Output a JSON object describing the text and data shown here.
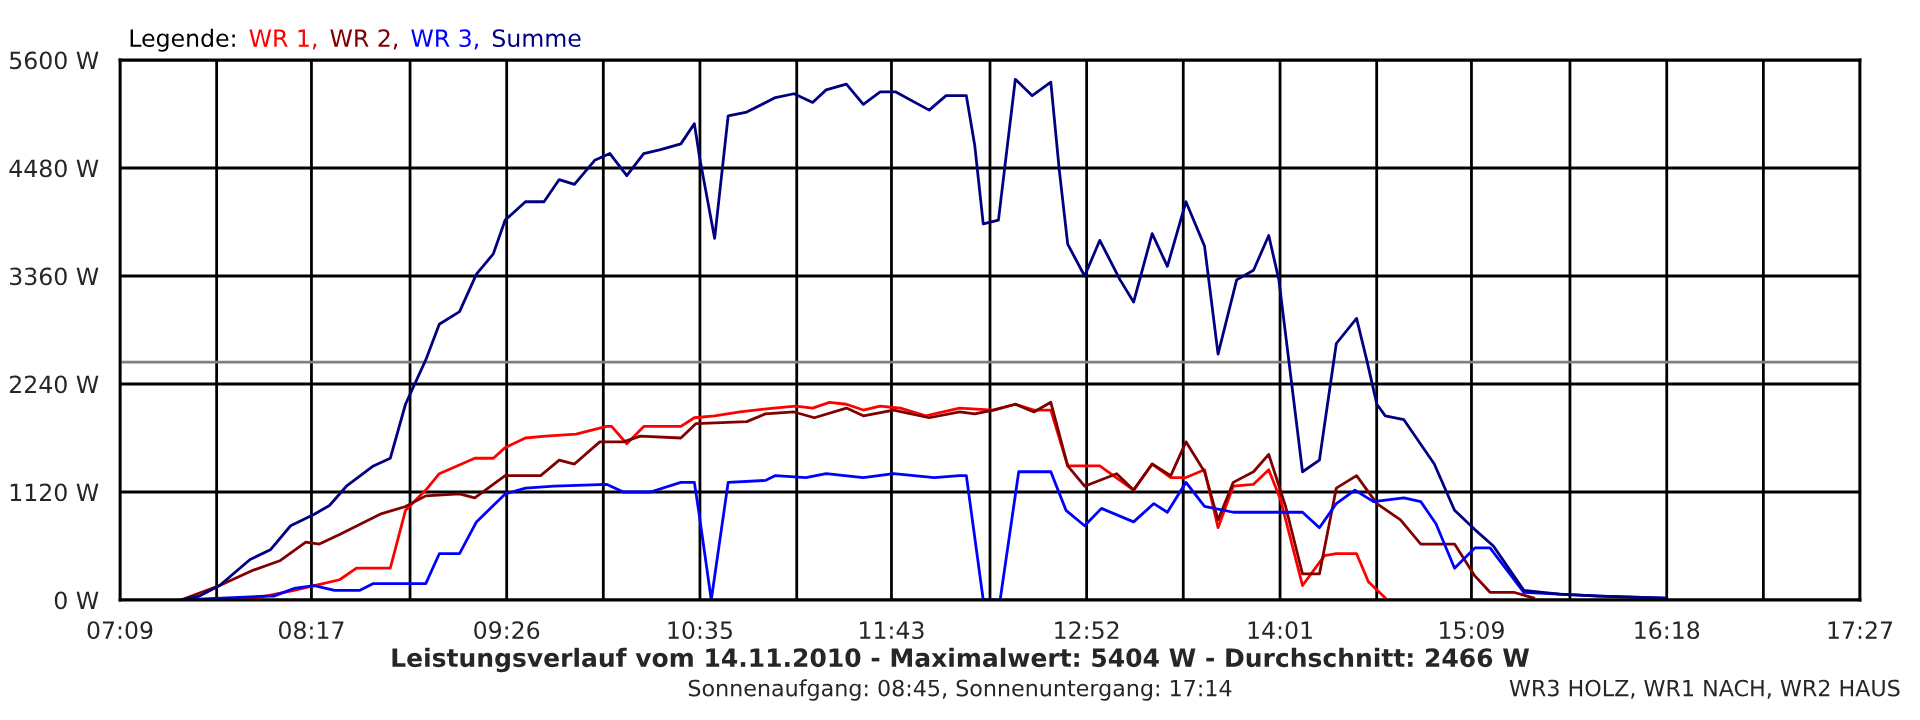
{
  "chart_data": {
    "type": "line",
    "title": "Leistungsverlauf vom 14.11.2010 - Maximalwert: 5404 W - Durchschnitt: 2466 W",
    "annotations": [
      "Sonnenaufgang: 08:45, Sonnenuntergang: 17:14",
      "WR3 HOLZ, WR1 NACH, WR2 HAUS"
    ],
    "legend_title": "Legende:",
    "legend": "top left",
    "grid": true,
    "line_style": "solid",
    "marker": "none",
    "xlim": [
      7.15,
      17.45
    ],
    "xticks": [
      {
        "value": 7.15,
        "label": "07:09"
      },
      {
        "value": 7.722,
        "label": null
      },
      {
        "value": 8.2833,
        "label": "08:17"
      },
      {
        "value": 8.867,
        "label": null
      },
      {
        "value": 9.439,
        "label": "09:26"
      },
      {
        "value": 10.011,
        "label": null
      },
      {
        "value": 10.583,
        "label": "10:35"
      },
      {
        "value": 11.156,
        "label": null
      },
      {
        "value": 11.7167,
        "label": "11:43"
      },
      {
        "value": 12.3,
        "label": null
      },
      {
        "value": 12.872,
        "label": "12:52"
      },
      {
        "value": 13.444,
        "label": null
      },
      {
        "value": 14.017,
        "label": "14:01"
      },
      {
        "value": 14.589,
        "label": null
      },
      {
        "value": 15.15,
        "label": "15:09"
      },
      {
        "value": 15.733,
        "label": null
      },
      {
        "value": 16.306,
        "label": "16:18"
      },
      {
        "value": 16.878,
        "label": null
      },
      {
        "value": 17.45,
        "label": "17:27"
      }
    ],
    "ylim": [
      0,
      5600
    ],
    "yticks": [
      {
        "value": 0,
        "label": "0 W"
      },
      {
        "value": 1120,
        "label": "1120 W"
      },
      {
        "value": 2240,
        "label": "2240 W"
      },
      {
        "value": 3360,
        "label": "3360 W"
      },
      {
        "value": 4480,
        "label": "4480 W"
      },
      {
        "value": 5600,
        "label": "5600 W"
      }
    ],
    "ref_lines": [
      {
        "axis": "y",
        "value": 2466,
        "color": "#808080"
      }
    ],
    "series": [
      {
        "name": "WR 1,",
        "color": "#ff0000",
        "x": [
          7.51,
          7.9,
          8.18,
          8.3,
          8.45,
          8.55,
          8.75,
          8.84,
          8.96,
          9.04,
          9.25,
          9.36,
          9.43,
          9.55,
          9.67,
          9.85,
          10.03,
          10.06,
          10.15,
          10.25,
          10.47,
          10.55,
          10.67,
          10.82,
          11.02,
          11.15,
          11.25,
          11.35,
          11.45,
          11.55,
          11.65,
          11.77,
          11.92,
          12.12,
          12.32,
          12.45,
          12.56,
          12.66,
          12.76,
          12.95,
          13.15,
          13.26,
          13.37,
          13.46,
          13.57,
          13.65,
          13.74,
          13.86,
          13.95,
          14.02,
          14.15,
          14.28,
          14.35,
          14.47,
          14.54,
          14.64
        ],
        "values": [
          0,
          0,
          100,
          150,
          210,
          330,
          330,
          930,
          1140,
          1310,
          1470,
          1470,
          1580,
          1680,
          1700,
          1720,
          1800,
          1800,
          1620,
          1800,
          1800,
          1890,
          1910,
          1950,
          1990,
          2010,
          1990,
          2050,
          2030,
          1970,
          2010,
          1990,
          1910,
          1990,
          1970,
          2030,
          1970,
          1970,
          1390,
          1390,
          1140,
          1410,
          1270,
          1270,
          1350,
          750,
          1180,
          1200,
          1350,
          1040,
          150,
          460,
          480,
          480,
          190,
          20
        ]
      },
      {
        "name": "WR 2,",
        "color": "#800000",
        "x": [
          7.51,
          7.74,
          7.94,
          8.1,
          8.25,
          8.33,
          8.45,
          8.69,
          8.84,
          8.96,
          9.16,
          9.25,
          9.43,
          9.64,
          9.75,
          9.84,
          9.99,
          10.13,
          10.23,
          10.47,
          10.56,
          10.86,
          10.97,
          11.14,
          11.26,
          11.45,
          11.55,
          11.73,
          11.94,
          12.12,
          12.21,
          12.32,
          12.45,
          12.56,
          12.66,
          12.76,
          12.86,
          13.05,
          13.15,
          13.26,
          13.37,
          13.46,
          13.57,
          13.65,
          13.74,
          13.86,
          13.95,
          14.05,
          14.15,
          14.25,
          14.35,
          14.47,
          14.59,
          14.73,
          14.85,
          15.05,
          15.17,
          15.26,
          15.4,
          15.52
        ],
        "values": [
          0,
          150,
          310,
          410,
          600,
          580,
          680,
          890,
          970,
          1080,
          1100,
          1060,
          1290,
          1290,
          1450,
          1410,
          1640,
          1640,
          1700,
          1680,
          1830,
          1850,
          1930,
          1950,
          1890,
          1990,
          1910,
          1970,
          1890,
          1950,
          1930,
          1970,
          2030,
          1950,
          2050,
          1390,
          1180,
          1310,
          1140,
          1410,
          1290,
          1640,
          1330,
          830,
          1220,
          1330,
          1510,
          970,
          270,
          270,
          1160,
          1290,
          1000,
          830,
          580,
          580,
          250,
          80,
          80,
          20
        ]
      },
      {
        "name": "WR 3,",
        "color": "#0000ff",
        "x": [
          7.51,
          8.01,
          8.06,
          8.18,
          8.3,
          8.42,
          8.57,
          8.65,
          8.96,
          9.04,
          9.16,
          9.26,
          9.43,
          9.55,
          9.72,
          10.03,
          10.13,
          10.29,
          10.47,
          10.55,
          10.58,
          10.65,
          10.75,
          10.97,
          11.03,
          11.21,
          11.33,
          11.55,
          11.73,
          11.97,
          12.12,
          12.16,
          12.26,
          12.36,
          12.47,
          12.66,
          12.75,
          12.86,
          12.96,
          13.15,
          13.27,
          13.35,
          13.46,
          13.57,
          13.74,
          14.05,
          14.15,
          14.25,
          14.35,
          14.46,
          14.57,
          14.75,
          14.85,
          14.94,
          15.05,
          15.17,
          15.26,
          15.46,
          15.91,
          16.3
        ],
        "values": [
          0,
          40,
          40,
          120,
          150,
          100,
          100,
          170,
          170,
          480,
          480,
          810,
          1100,
          1160,
          1180,
          1200,
          1120,
          1120,
          1220,
          1220,
          870,
          0,
          1220,
          1240,
          1290,
          1270,
          1310,
          1270,
          1310,
          1270,
          1290,
          1290,
          0,
          0,
          1330,
          1330,
          930,
          770,
          950,
          810,
          1000,
          910,
          1220,
          970,
          910,
          910,
          910,
          750,
          1000,
          1140,
          1020,
          1060,
          1020,
          790,
          330,
          540,
          540,
          80,
          40,
          20
        ]
      },
      {
        "name": "Summe",
        "color": "#000080",
        "x": [
          7.51,
          7.62,
          7.74,
          7.92,
          8.04,
          8.16,
          8.3,
          8.39,
          8.49,
          8.65,
          8.75,
          8.84,
          8.96,
          9.04,
          9.16,
          9.26,
          9.36,
          9.43,
          9.55,
          9.66,
          9.75,
          9.84,
          9.96,
          10.05,
          10.15,
          10.25,
          10.35,
          10.47,
          10.55,
          10.58,
          10.67,
          10.75,
          10.86,
          11.03,
          11.14,
          11.25,
          11.33,
          11.45,
          11.55,
          11.65,
          11.74,
          11.94,
          12.04,
          12.16,
          12.21,
          12.26,
          12.35,
          12.45,
          12.55,
          12.66,
          12.71,
          12.76,
          12.86,
          12.95,
          13.07,
          13.15,
          13.26,
          13.35,
          13.46,
          13.57,
          13.65,
          13.76,
          13.86,
          13.95,
          14.01,
          14.15,
          14.25,
          14.35,
          14.47,
          14.53,
          14.59,
          14.64,
          14.75,
          14.93,
          15.05,
          15.17,
          15.28,
          15.46,
          15.67,
          15.91,
          16.3
        ],
        "values": [
          0,
          40,
          150,
          420,
          520,
          770,
          890,
          980,
          1180,
          1390,
          1470,
          2030,
          2490,
          2860,
          2990,
          3380,
          3590,
          3940,
          4130,
          4130,
          4360,
          4310,
          4560,
          4630,
          4400,
          4630,
          4670,
          4730,
          4940,
          4600,
          3750,
          5020,
          5060,
          5210,
          5250,
          5160,
          5290,
          5350,
          5140,
          5270,
          5270,
          5080,
          5230,
          5230,
          4710,
          3900,
          3940,
          5400,
          5230,
          5370,
          4460,
          3690,
          3360,
          3730,
          3320,
          3090,
          3800,
          3460,
          4130,
          3670,
          2550,
          3320,
          3420,
          3780,
          3320,
          1330,
          1450,
          2660,
          2920,
          2490,
          2030,
          1910,
          1870,
          1410,
          930,
          730,
          560,
          100,
          60,
          40,
          20
        ]
      }
    ]
  }
}
